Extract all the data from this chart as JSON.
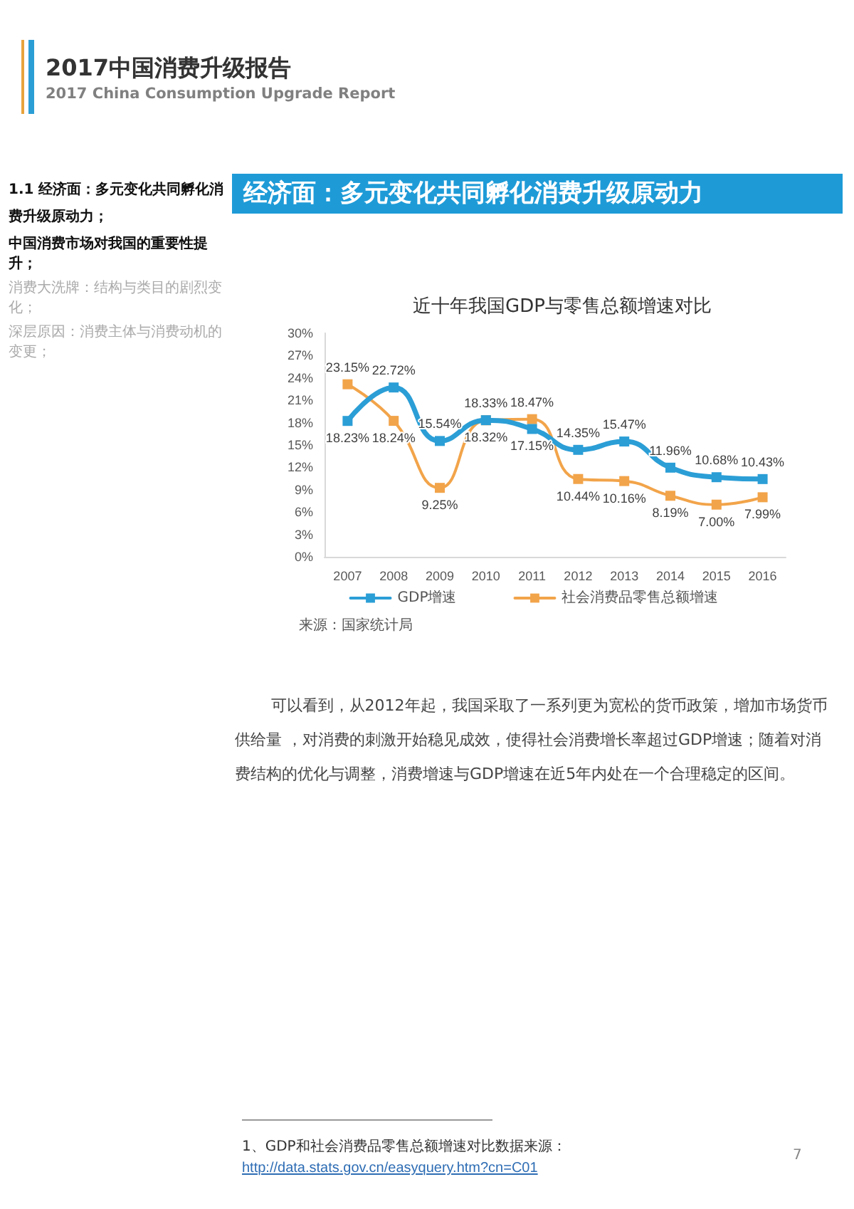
{
  "chart_data": {
    "type": "line",
    "title": "近十年我国GDP与零售总额增速对比",
    "categories": [
      "2007",
      "2008",
      "2009",
      "2010",
      "2011",
      "2012",
      "2013",
      "2014",
      "2015",
      "2016"
    ],
    "series": [
      {
        "name": "GDP增速",
        "color": "#2b9ed6",
        "values": [
          18.23,
          22.72,
          15.54,
          18.33,
          17.15,
          14.35,
          15.47,
          11.96,
          10.68,
          10.43
        ],
        "value_labels": [
          "18.23%",
          "22.72%",
          "15.54%",
          "18.33%",
          "17.15%",
          "14.35%",
          "15.47%",
          "11.96%",
          "10.68%",
          "10.43%"
        ]
      },
      {
        "name": "社会消费品零售总额增速",
        "color": "#f2a44a",
        "values": [
          23.15,
          18.24,
          9.25,
          18.32,
          18.47,
          10.44,
          10.16,
          8.19,
          7.0,
          7.99
        ],
        "value_labels": [
          "23.15%",
          "18.24%",
          "9.25%",
          "18.32%",
          "18.47%",
          "10.44%",
          "10.16%",
          "8.19%",
          "7.00%",
          "7.99%"
        ]
      }
    ],
    "ylim": [
      0,
      30
    ],
    "yticks": [
      {
        "value": 0,
        "label": "0%"
      },
      {
        "value": 3,
        "label": "3%"
      },
      {
        "value": 6,
        "label": "6%"
      },
      {
        "value": 9,
        "label": "9%"
      },
      {
        "value": 12,
        "label": "12%"
      },
      {
        "value": 15,
        "label": "15%"
      },
      {
        "value": 18,
        "label": "18%"
      },
      {
        "value": 21,
        "label": "21%"
      },
      {
        "value": 24,
        "label": "24%"
      },
      {
        "value": 27,
        "label": "27%"
      },
      {
        "value": 30,
        "label": "30%"
      }
    ],
    "grid": false,
    "legend": "bottom",
    "marker": "square",
    "line_style": "solid",
    "annotations": [
      "2017中国消费升级报告",
      "2017 China Consumption Upgrade Report",
      "1.1 经济面：多元变化共同孵化消费升级原动力；",
      "中国消费市场对我国的重要性提升；",
      "消费大洗牌：结构与类目的剧烈变化；",
      "深层原因：消费主体与消费动机的变更；",
      "经济面：多元变化共同孵化消费升级原动力",
      "来源：国家统计局",
      "可以看到，从2012年起，我国采取了一系列更为宽松的货币政策，增加市场货币供给量 ，对消费的刺激开始稳见成效，使得社会消费增长率超过GDP增速；随着对消费结构的优化与调整，消费增速与GDP增速在近5年内处在一个合理稳定的区间。",
      "1、GDP和社会消费品零售总额增速对比数据来源：",
      "http://data.stats.gov.cn/easyquery.htm?cn=C01",
      "7"
    ]
  }
}
